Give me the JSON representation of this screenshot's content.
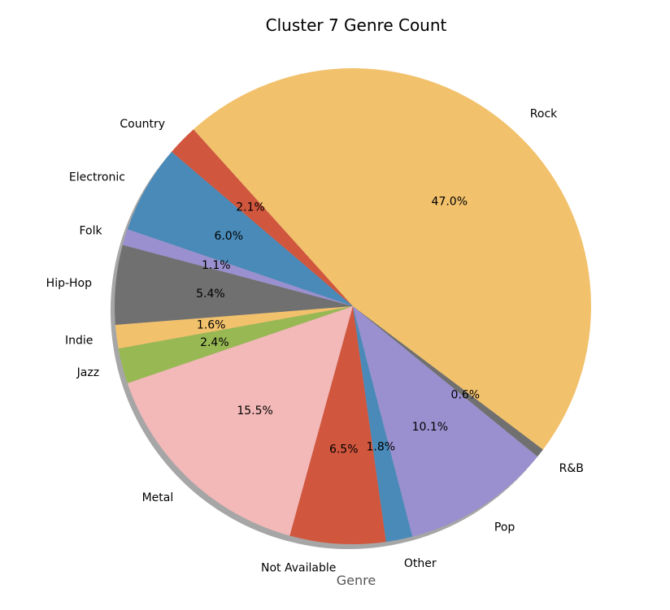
{
  "chart_data": {
    "type": "pie",
    "title": "Cluster 7 Genre Count",
    "xlabel": "Genre",
    "ylabel": "",
    "shadow": true,
    "slices": [
      {
        "label": "Country",
        "value": 2.1,
        "pct_label": "2.1%",
        "color": "#d1563e"
      },
      {
        "label": "Electronic",
        "value": 6.0,
        "pct_label": "6.0%",
        "color": "#4a8ab8"
      },
      {
        "label": "Folk",
        "value": 1.1,
        "pct_label": "1.1%",
        "color": "#9a90cf"
      },
      {
        "label": "Hip-Hop",
        "value": 5.4,
        "pct_label": "5.4%",
        "color": "#707070"
      },
      {
        "label": "Indie",
        "value": 1.6,
        "pct_label": "1.6%",
        "color": "#f2c16c"
      },
      {
        "label": "Jazz",
        "value": 2.4,
        "pct_label": "2.4%",
        "color": "#98b854"
      },
      {
        "label": "Metal",
        "value": 15.5,
        "pct_label": "15.5%",
        "color": "#f3b8b8"
      },
      {
        "label": "Not Available",
        "value": 6.5,
        "pct_label": "6.5%",
        "color": "#d1563e"
      },
      {
        "label": "Other",
        "value": 1.8,
        "pct_label": "1.8%",
        "color": "#4a8ab8"
      },
      {
        "label": "Pop",
        "value": 10.1,
        "pct_label": "10.1%",
        "color": "#9a90cf"
      },
      {
        "label": "R&B",
        "value": 0.6,
        "pct_label": "0.6%",
        "color": "#707070"
      },
      {
        "label": "Rock",
        "value": 47.0,
        "pct_label": "47.0%",
        "color": "#f2c16c"
      }
    ]
  }
}
